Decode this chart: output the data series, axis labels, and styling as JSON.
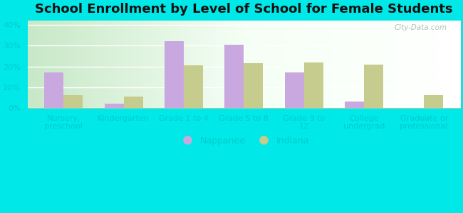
{
  "title": "School Enrollment by Level of School for Female Students",
  "categories": [
    "Nursery,\npreschool",
    "Kindergarten",
    "Grade 1 to 4",
    "Grade 5 to 8",
    "Grade 9 to\n12",
    "College\nundergrad",
    "Graduate or\nprofessional"
  ],
  "nappanee": [
    17,
    2,
    32,
    30.5,
    17,
    3,
    0
  ],
  "indiana": [
    6,
    5.5,
    20.5,
    21.5,
    22,
    21,
    6
  ],
  "nappanee_color": "#c9a8e0",
  "indiana_color": "#c5cc8e",
  "background_color": "#00e8e8",
  "ylim": [
    0,
    42
  ],
  "yticks": [
    0,
    10,
    20,
    30,
    40
  ],
  "ytick_labels": [
    "0%",
    "10%",
    "20%",
    "30%",
    "40%"
  ],
  "bar_width": 0.32,
  "legend_labels": [
    "Nappanee",
    "Indiana"
  ],
  "title_fontsize": 13,
  "tick_fontsize": 8,
  "tick_color": "#00cccc",
  "watermark": "City-Data.com"
}
